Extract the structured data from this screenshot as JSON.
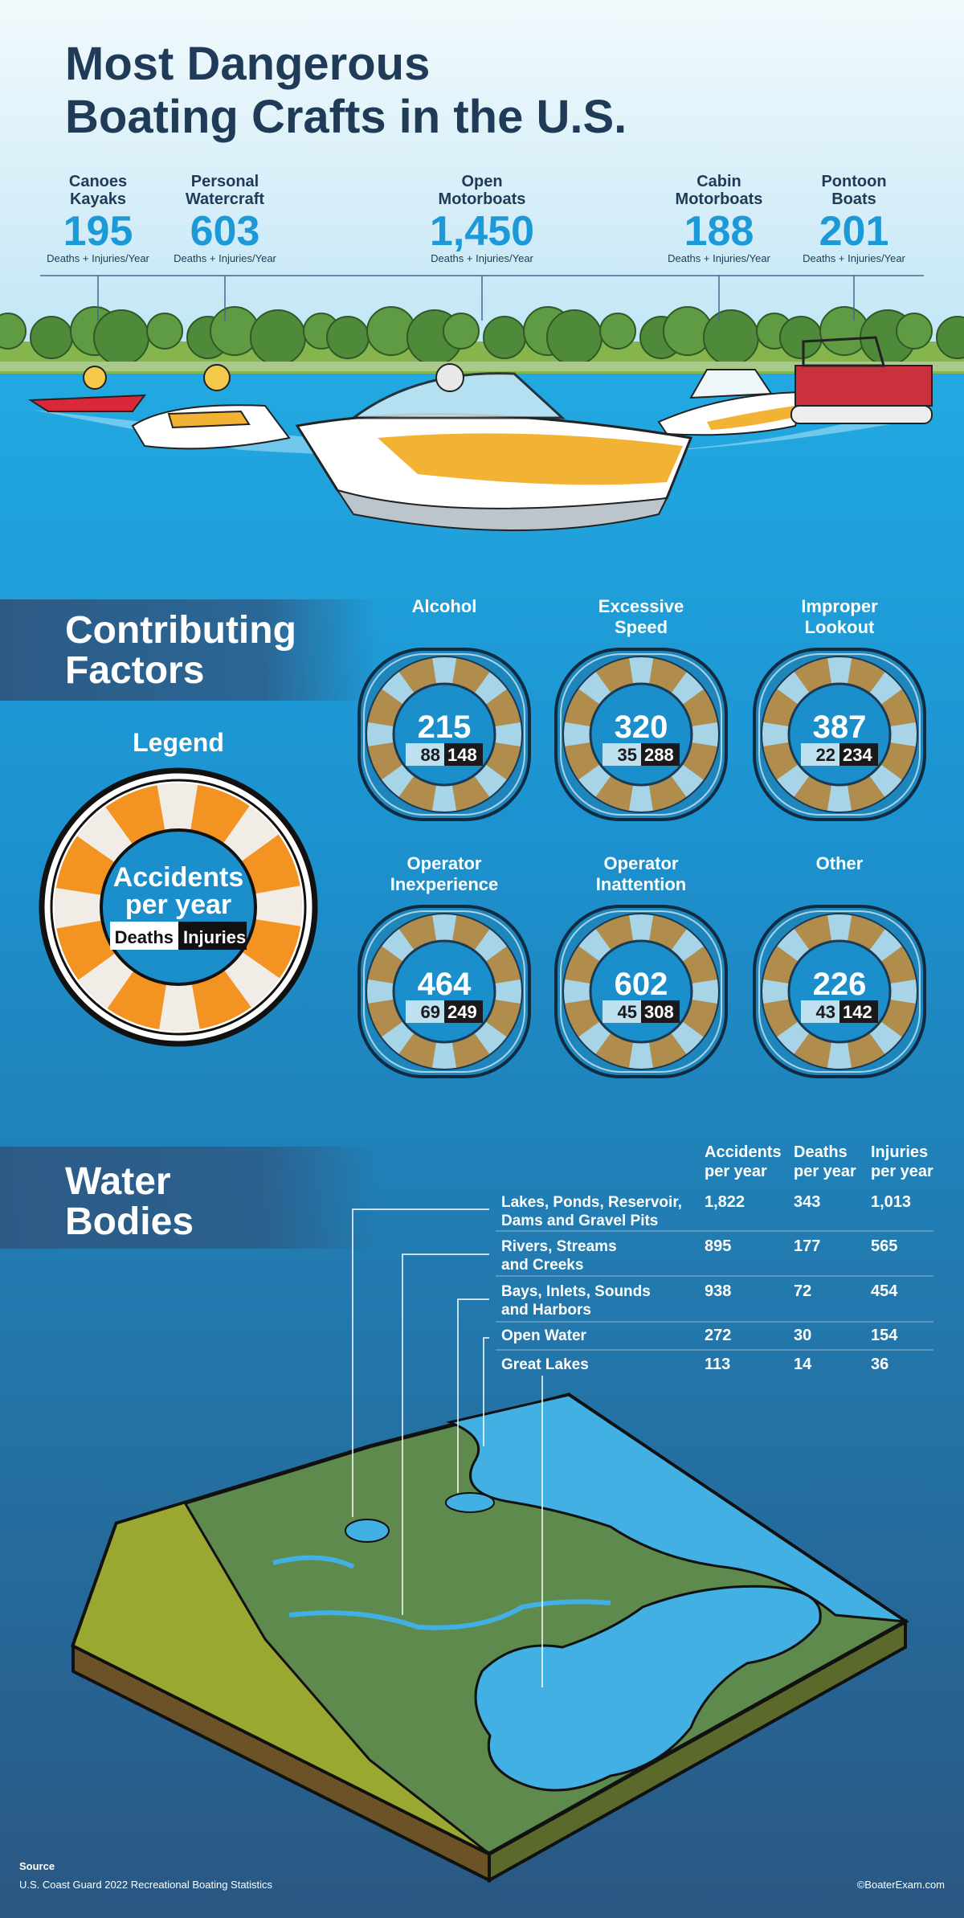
{
  "title_lines": [
    "Most Dangerous",
    "Boating Crafts in the U.S."
  ],
  "crafts": [
    {
      "name_lines": [
        "Canoes",
        "Kayaks"
      ],
      "value": "195",
      "caption": "Deaths + Injuries/Year"
    },
    {
      "name_lines": [
        "Personal",
        "Watercraft"
      ],
      "value": "603",
      "caption": "Deaths + Injuries/Year"
    },
    {
      "name_lines": [
        "Open",
        "Motorboats"
      ],
      "value": "1,450",
      "caption": "Deaths + Injuries/Year"
    },
    {
      "name_lines": [
        "Cabin",
        "Motorboats"
      ],
      "value": "188",
      "caption": "Deaths + Injuries/Year"
    },
    {
      "name_lines": [
        "Pontoon",
        "Boats"
      ],
      "value": "201",
      "caption": "Deaths + Injuries/Year"
    }
  ],
  "factors": {
    "title_lines": [
      "Contributing",
      "Factors"
    ],
    "legend": {
      "title": "Legend",
      "center_lines": [
        "Accidents",
        "per year"
      ],
      "deaths": "Deaths",
      "injuries": "Injuries"
    },
    "items": [
      {
        "name_lines": [
          "Alcohol"
        ],
        "accidents": "215",
        "deaths": "88",
        "injuries": "148"
      },
      {
        "name_lines": [
          "Excessive",
          "Speed"
        ],
        "accidents": "320",
        "deaths": "35",
        "injuries": "288"
      },
      {
        "name_lines": [
          "Improper",
          "Lookout"
        ],
        "accidents": "387",
        "deaths": "22",
        "injuries": "234"
      },
      {
        "name_lines": [
          "Operator",
          "Inexperience"
        ],
        "accidents": "464",
        "deaths": "69",
        "injuries": "249"
      },
      {
        "name_lines": [
          "Operator",
          "Inattention"
        ],
        "accidents": "602",
        "deaths": "45",
        "injuries": "308"
      },
      {
        "name_lines": [
          "Other"
        ],
        "accidents": "226",
        "deaths": "43",
        "injuries": "142"
      }
    ]
  },
  "water": {
    "title_lines": [
      "Water",
      "Bodies"
    ],
    "columns": [
      [
        "Accidents",
        "per year"
      ],
      [
        "Deaths",
        "per year"
      ],
      [
        "Injuries",
        "per year"
      ]
    ],
    "rows": [
      {
        "name_lines": [
          "Lakes, Ponds, Reservoir,",
          "Dams and Gravel Pits"
        ],
        "accidents": "1,822",
        "deaths": "343",
        "injuries": "1,013"
      },
      {
        "name_lines": [
          "Rivers, Streams",
          "and Creeks"
        ],
        "accidents": "895",
        "deaths": "177",
        "injuries": "565"
      },
      {
        "name_lines": [
          "Bays, Inlets, Sounds",
          "and Harbors"
        ],
        "accidents": "938",
        "deaths": "72",
        "injuries": "454"
      },
      {
        "name_lines": [
          "Open Water"
        ],
        "accidents": "272",
        "deaths": "30",
        "injuries": "154"
      },
      {
        "name_lines": [
          "Great Lakes"
        ],
        "accidents": "113",
        "deaths": "14",
        "injuries": "36"
      }
    ]
  },
  "source": {
    "label": "Source",
    "text": "U.S. Coast Guard 2022 Recreational Boating Statistics"
  },
  "credit": "©BoaterExam.com"
}
